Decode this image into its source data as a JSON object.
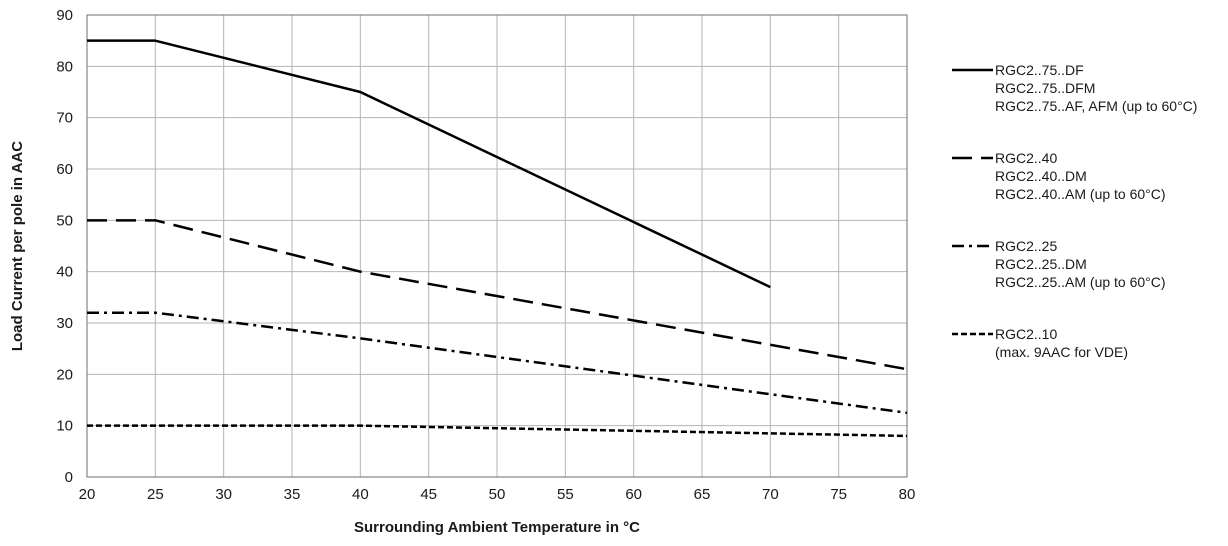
{
  "chart_data": {
    "type": "line",
    "title": "",
    "xlabel": "Surrounding Ambient Temperature in °C",
    "ylabel": "Load Current per pole in AAC",
    "xlim": [
      20,
      80
    ],
    "ylim": [
      0,
      90
    ],
    "xticks": [
      20,
      25,
      30,
      35,
      40,
      45,
      50,
      55,
      60,
      65,
      70,
      75,
      80
    ],
    "yticks": [
      0,
      10,
      20,
      30,
      40,
      50,
      60,
      70,
      80,
      90
    ],
    "grid": true,
    "legend_position": "right",
    "series": [
      {
        "line_style": "solid",
        "color": "#000000",
        "legend_lines": [
          "RGC2..75..DF",
          "RGC2..75..DFM",
          "RGC2..75..AF, AFM (up to 60°C)"
        ],
        "x": [
          20,
          25,
          40,
          70
        ],
        "y": [
          85,
          85,
          75,
          37
        ]
      },
      {
        "line_style": "long-dash",
        "color": "#000000",
        "legend_lines": [
          "RGC2..40",
          "RGC2..40..DM",
          "RGC2..40..AM (up to 60°C)"
        ],
        "x": [
          20,
          25,
          40,
          80
        ],
        "y": [
          50,
          50,
          40,
          21
        ]
      },
      {
        "line_style": "dash-dot",
        "color": "#000000",
        "legend_lines": [
          "RGC2..25",
          "RGC2..25..DM",
          "RGC2..25..AM (up to 60°C)"
        ],
        "x": [
          20,
          25,
          40,
          80
        ],
        "y": [
          32,
          32,
          27,
          12.5
        ]
      },
      {
        "line_style": "short-dash",
        "color": "#000000",
        "legend_lines": [
          "RGC2..10",
          "(max. 9AAC for VDE)"
        ],
        "x": [
          20,
          40,
          80
        ],
        "y": [
          10,
          10,
          8
        ]
      }
    ]
  }
}
